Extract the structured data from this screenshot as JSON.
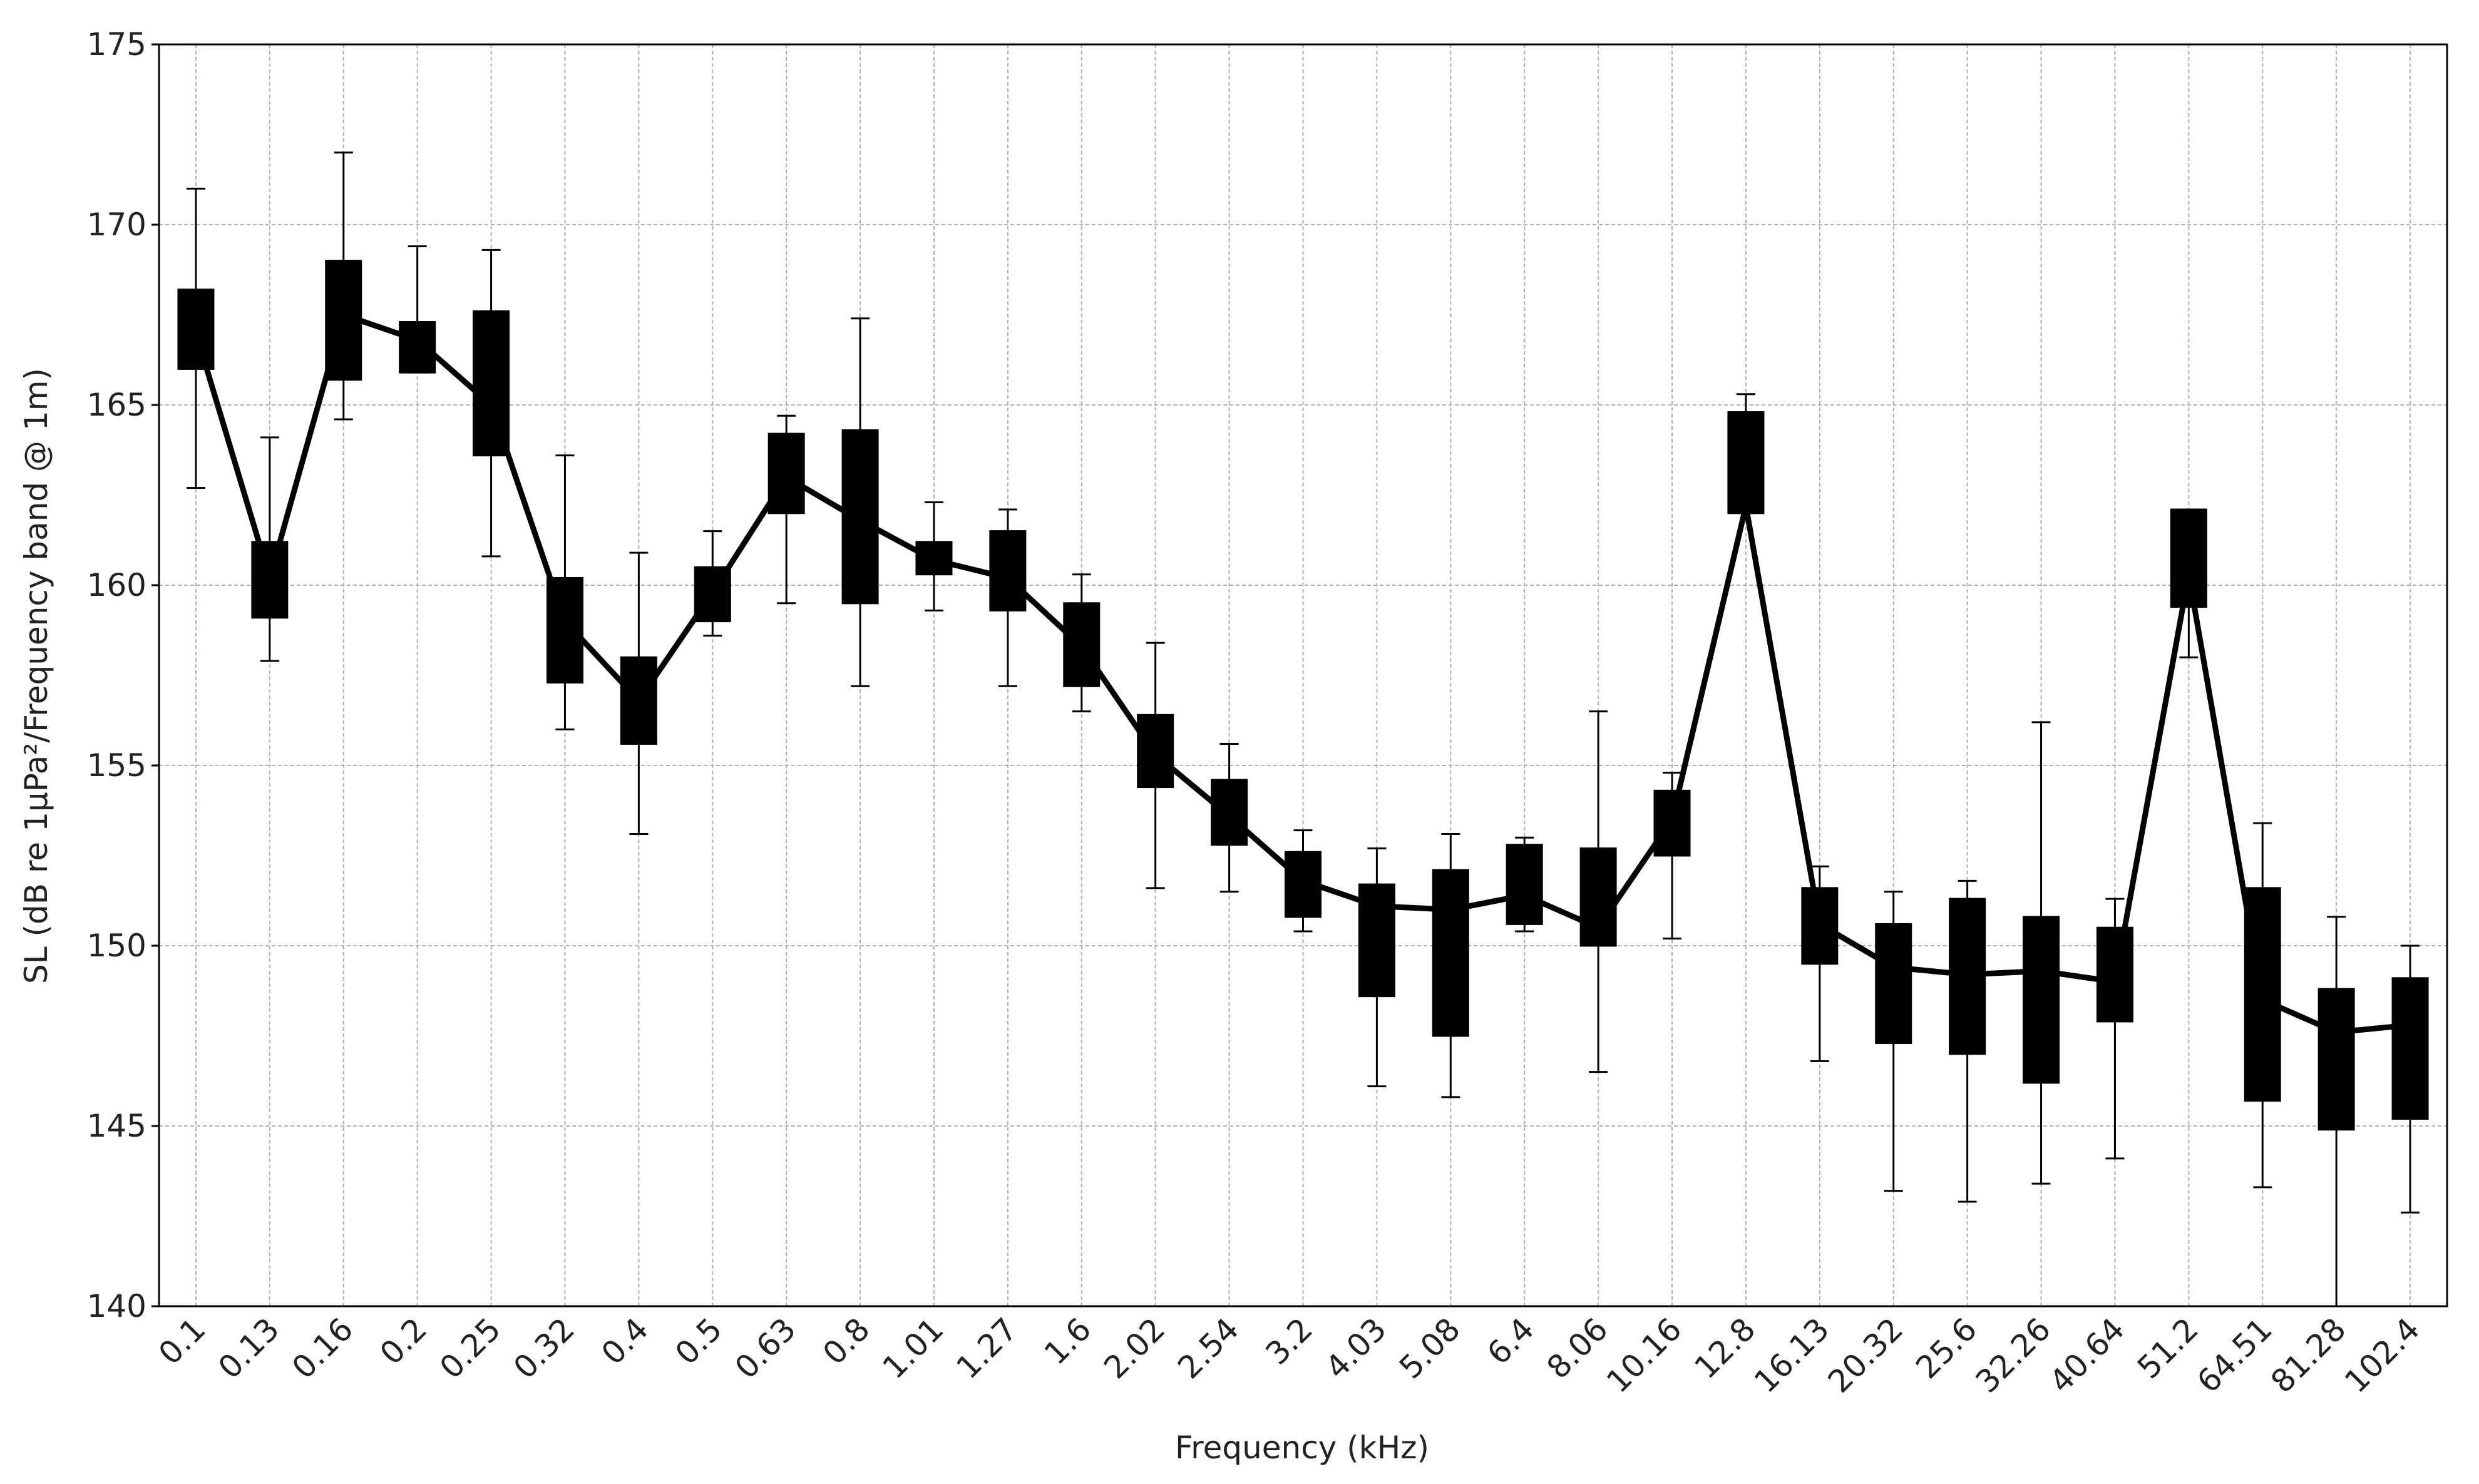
{
  "chart_data": {
    "type": "box",
    "x_label": "Frequency (kHz)",
    "y_label": "SL (dB re 1µPa²/Frequency band @ 1m)",
    "categories": [
      "0.1",
      "0.13",
      "0.16",
      "0.2",
      "0.25",
      "0.32",
      "0.4",
      "0.5",
      "0.63",
      "0.8",
      "1.01",
      "1.27",
      "1.6",
      "2.02",
      "2.54",
      "3.2",
      "4.03",
      "5.08",
      "6.4",
      "8.06",
      "10.16",
      "12.8",
      "16.13",
      "20.32",
      "25.6",
      "32.26",
      "40.64",
      "51.2",
      "64.51",
      "81.28",
      "102.4"
    ],
    "whisker_low": [
      162.7,
      157.9,
      164.6,
      165.9,
      160.8,
      156.0,
      153.1,
      158.6,
      159.5,
      157.2,
      159.3,
      157.2,
      156.5,
      151.6,
      151.5,
      150.4,
      146.1,
      145.8,
      150.4,
      146.5,
      150.2,
      162.0,
      146.8,
      143.2,
      142.9,
      143.4,
      144.1,
      158.0,
      143.3,
      140.0,
      142.6
    ],
    "q1": [
      166.0,
      159.1,
      165.7,
      165.9,
      163.6,
      157.3,
      155.6,
      159.0,
      162.0,
      159.5,
      160.3,
      159.3,
      157.2,
      154.4,
      152.8,
      150.8,
      148.6,
      147.5,
      150.6,
      150.0,
      152.5,
      162.0,
      149.5,
      147.3,
      147.0,
      146.2,
      147.9,
      159.4,
      145.7,
      144.9,
      145.2
    ],
    "median": [
      167.0,
      160.2,
      167.5,
      166.8,
      165.0,
      159.0,
      156.8,
      159.8,
      163.0,
      161.8,
      160.7,
      160.2,
      158.3,
      155.3,
      153.6,
      151.8,
      151.1,
      151.0,
      151.4,
      150.5,
      153.5,
      162.2,
      150.6,
      149.4,
      149.2,
      149.3,
      149.0,
      160.3,
      148.5,
      147.6,
      147.8
    ],
    "q3": [
      168.2,
      161.2,
      169.0,
      167.3,
      167.6,
      160.2,
      158.0,
      160.5,
      164.2,
      164.3,
      161.2,
      161.5,
      159.5,
      156.4,
      154.6,
      152.6,
      151.7,
      152.1,
      152.8,
      152.7,
      154.3,
      164.8,
      151.6,
      150.6,
      151.3,
      150.8,
      150.5,
      162.1,
      151.6,
      148.8,
      149.1
    ],
    "whisker_high": [
      171.0,
      164.1,
      172.0,
      169.4,
      169.3,
      163.6,
      160.9,
      161.5,
      164.7,
      167.4,
      162.3,
      162.1,
      160.3,
      158.4,
      155.6,
      153.2,
      152.7,
      153.1,
      153.0,
      156.5,
      154.8,
      165.3,
      152.2,
      151.5,
      151.8,
      156.2,
      151.3,
      162.1,
      153.4,
      150.8,
      150.0
    ],
    "color": "#000000",
    "ylim": [
      140,
      175
    ],
    "yticks": [
      140,
      145,
      150,
      155,
      160,
      165,
      170,
      175
    ],
    "grid": true
  }
}
